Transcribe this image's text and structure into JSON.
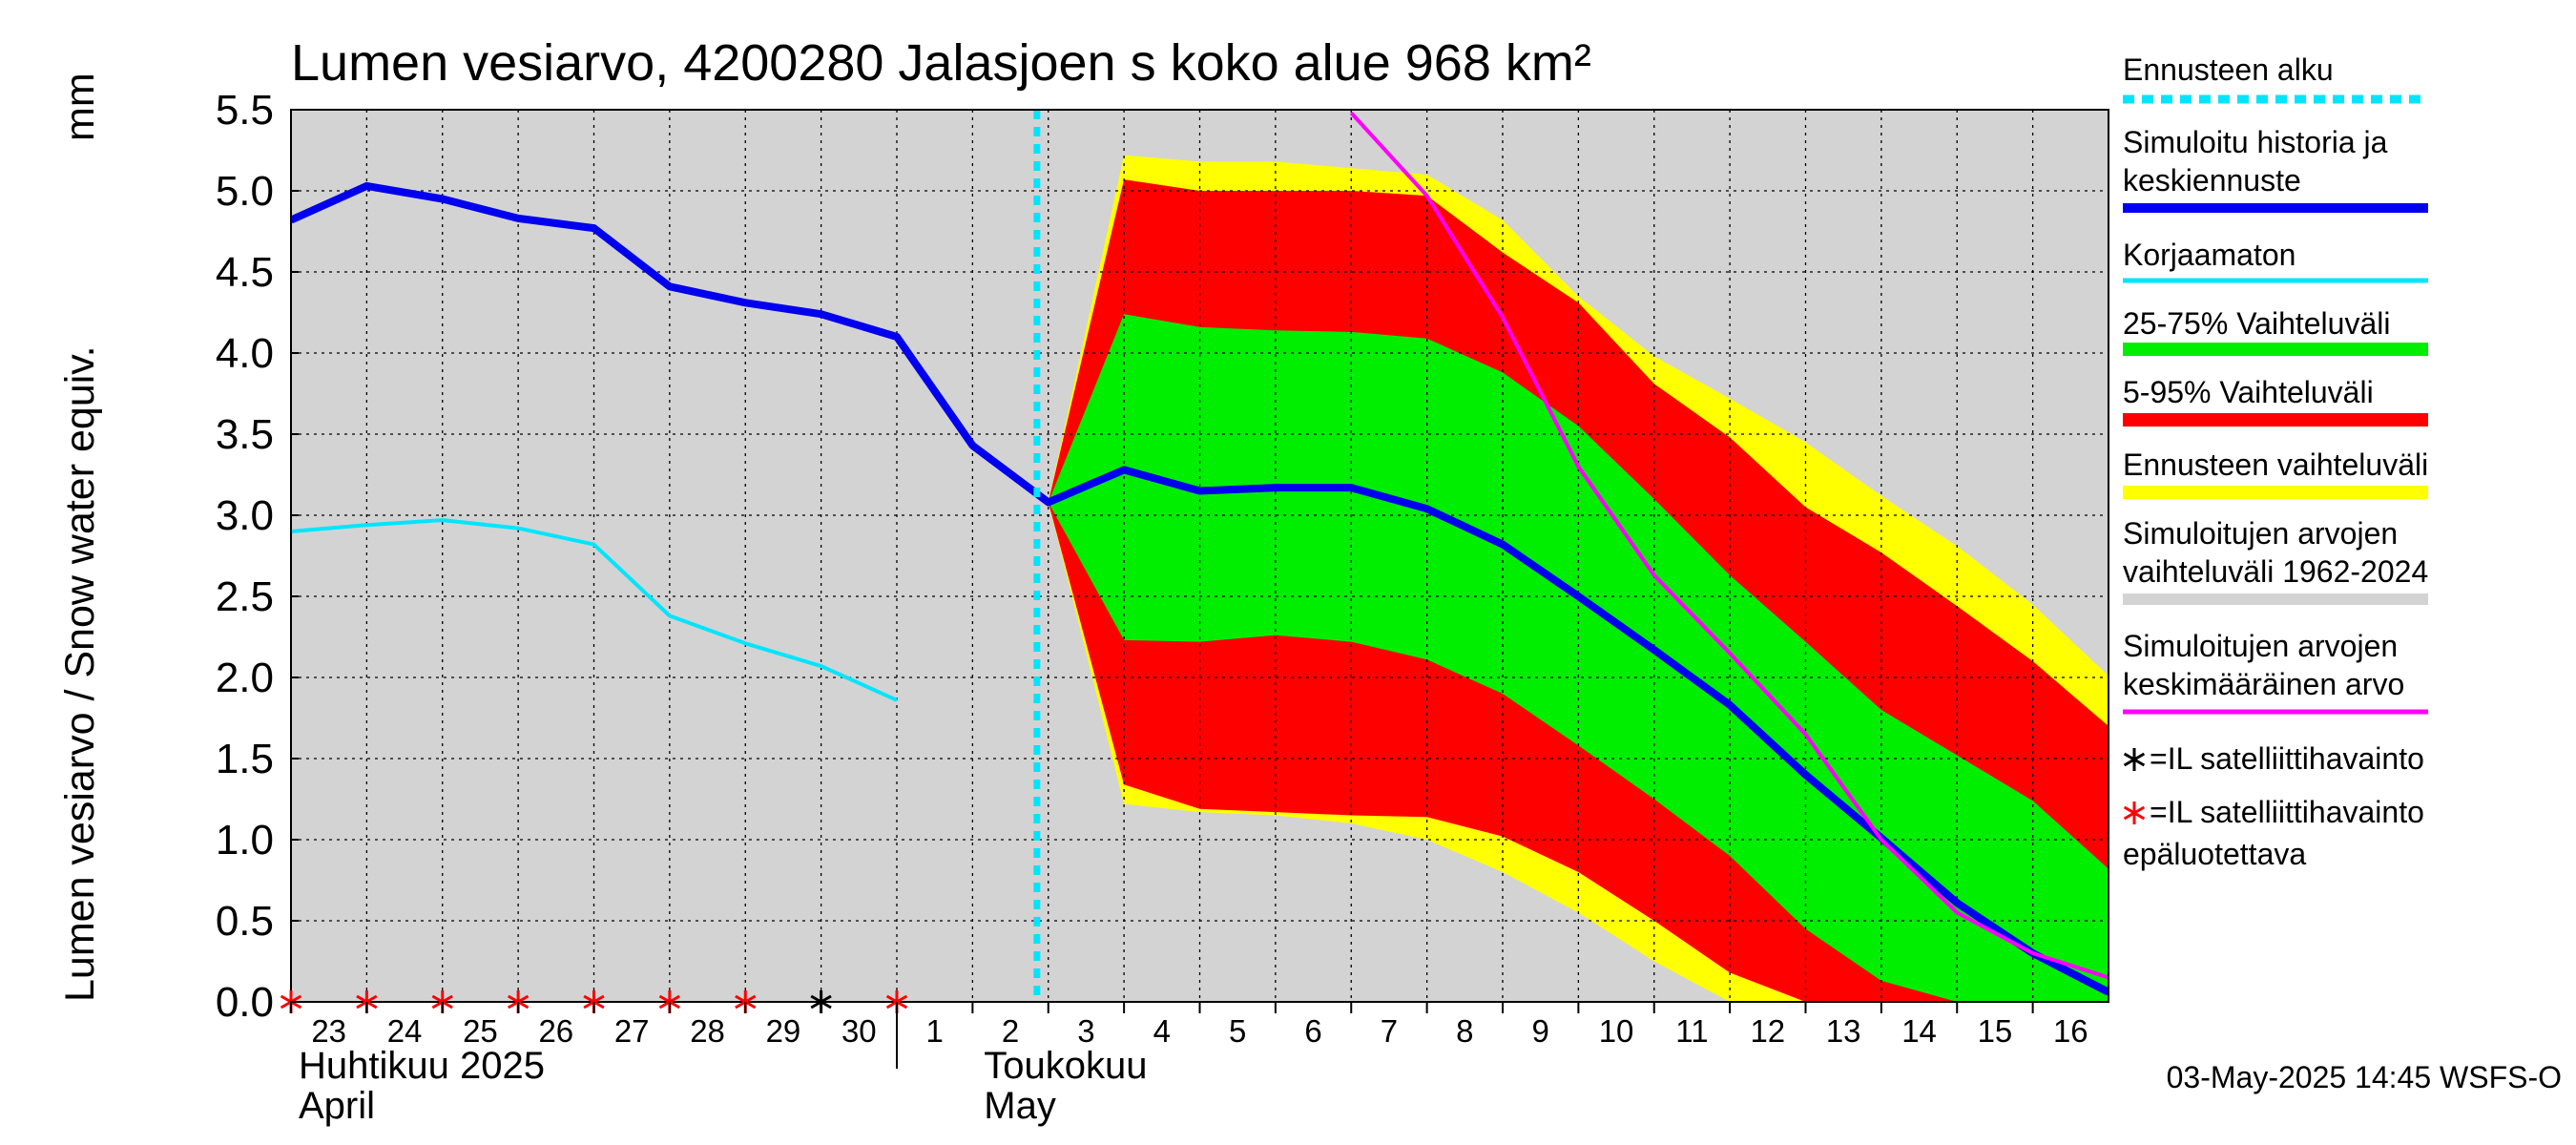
{
  "chart_data": {
    "type": "area",
    "title": "Lumen vesiarvo, 4200280 Jalasjoen s koko alue 968 km²",
    "ylabel": "Lumen vesiarvo / Snow water equiv.",
    "yunit": "mm",
    "ylim": [
      0,
      5.5
    ],
    "yticks": [
      "0.0",
      "0.5",
      "1.0",
      "1.5",
      "2.0",
      "2.5",
      "3.0",
      "3.5",
      "4.0",
      "4.5",
      "5.0",
      "5.5"
    ],
    "grid": true,
    "legend_placement": "right",
    "x_day_labels": [
      "23",
      "24",
      "25",
      "26",
      "27",
      "28",
      "29",
      "30",
      "1",
      "2",
      "3",
      "4",
      "5",
      "6",
      "7",
      "8",
      "9",
      "10",
      "11",
      "12",
      "13",
      "14",
      "15",
      "16"
    ],
    "x_dates": [
      "2025-04-23",
      "2025-04-24",
      "2025-04-25",
      "2025-04-26",
      "2025-04-27",
      "2025-04-28",
      "2025-04-29",
      "2025-04-30",
      "2025-05-01",
      "2025-05-02",
      "2025-05-03",
      "2025-05-04",
      "2025-05-05",
      "2025-05-06",
      "2025-05-07",
      "2025-05-08",
      "2025-05-09",
      "2025-05-10",
      "2025-05-11",
      "2025-05-12",
      "2025-05-13",
      "2025-05-14",
      "2025-05-15",
      "2025-05-16"
    ],
    "month_labels": [
      {
        "line1": "Huhtikuu  2025",
        "line2": "April"
      },
      {
        "line1": "Toukokuu",
        "line2": "May"
      }
    ],
    "forecast_start": "2025-05-03",
    "series": [
      {
        "name": "Simuloitu historia ja keskiennuste",
        "color": "#0000ee",
        "points": [
          [
            "2025-04-23",
            4.82
          ],
          [
            "2025-04-24",
            5.03
          ],
          [
            "2025-04-25",
            4.95
          ],
          [
            "2025-04-26",
            4.83
          ],
          [
            "2025-04-27",
            4.77
          ],
          [
            "2025-04-28",
            4.41
          ],
          [
            "2025-04-29",
            4.31
          ],
          [
            "2025-04-30",
            4.24
          ],
          [
            "2025-05-01",
            4.1
          ],
          [
            "2025-05-02",
            3.43
          ],
          [
            "2025-05-03",
            3.08
          ],
          [
            "2025-05-04",
            3.28
          ],
          [
            "2025-05-05",
            3.15
          ],
          [
            "2025-05-06",
            3.17
          ],
          [
            "2025-05-07",
            3.17
          ],
          [
            "2025-05-08",
            3.04
          ],
          [
            "2025-05-09",
            2.82
          ],
          [
            "2025-05-10",
            2.5
          ],
          [
            "2025-05-11",
            2.17
          ],
          [
            "2025-05-12",
            1.83
          ],
          [
            "2025-05-13",
            1.4
          ],
          [
            "2025-05-14",
            1.01
          ],
          [
            "2025-05-15",
            0.61
          ],
          [
            "2025-05-16",
            0.3
          ],
          [
            "2025-05-17",
            0.06
          ]
        ]
      },
      {
        "name": "Korjaamaton",
        "color": "#00e5ff",
        "points": [
          [
            "2025-04-23",
            2.9
          ],
          [
            "2025-04-24",
            2.94
          ],
          [
            "2025-04-25",
            2.97
          ],
          [
            "2025-04-26",
            2.92
          ],
          [
            "2025-04-27",
            2.82
          ],
          [
            "2025-04-28",
            2.38
          ],
          [
            "2025-04-29",
            2.21
          ],
          [
            "2025-04-30",
            2.07
          ],
          [
            "2025-05-01",
            1.86
          ]
        ]
      },
      {
        "name": "Simuloitujen arvojen keskimääräinen arvo",
        "color": "#ff00ff",
        "points": [
          [
            "2025-05-07",
            5.48
          ],
          [
            "2025-05-08",
            4.97
          ],
          [
            "2025-05-09",
            4.22
          ],
          [
            "2025-05-10",
            3.3
          ],
          [
            "2025-05-11",
            2.63
          ],
          [
            "2025-05-12",
            2.15
          ],
          [
            "2025-05-13",
            1.65
          ],
          [
            "2025-05-14",
            1.0
          ],
          [
            "2025-05-15",
            0.55
          ],
          [
            "2025-05-16",
            0.3
          ],
          [
            "2025-05-17",
            0.15
          ]
        ]
      }
    ],
    "bands": {
      "x": [
        "2025-05-03",
        "2025-05-04",
        "2025-05-05",
        "2025-05-06",
        "2025-05-07",
        "2025-05-08",
        "2025-05-09",
        "2025-05-10",
        "2025-05-11",
        "2025-05-12",
        "2025-05-13",
        "2025-05-14",
        "2025-05-15",
        "2025-05-16",
        "2025-05-17"
      ],
      "ennusteen_vaihteluvali": {
        "name": "Ennusteen vaihteluväli",
        "color": "#ffff00",
        "upper": [
          3.08,
          5.22,
          5.18,
          5.18,
          5.14,
          5.1,
          4.82,
          4.35,
          3.98,
          3.72,
          3.45,
          3.12,
          2.81,
          2.45,
          2.01
        ],
        "lower": [
          3.08,
          1.22,
          1.17,
          1.15,
          1.1,
          1.0,
          0.8,
          0.55,
          0.25,
          0.0,
          0.0,
          0.0,
          0.0,
          0.0,
          0.0
        ]
      },
      "vaihteluvali_5_95": {
        "name": "5-95% Vaihteluväli",
        "color": "#ff0000",
        "upper": [
          3.08,
          5.07,
          5.0,
          5.0,
          5.0,
          4.97,
          4.62,
          4.31,
          3.81,
          3.48,
          3.05,
          2.77,
          2.44,
          2.1,
          1.7
        ],
        "lower": [
          3.08,
          1.34,
          1.19,
          1.17,
          1.15,
          1.14,
          1.02,
          0.8,
          0.5,
          0.18,
          0.0,
          0.0,
          0.0,
          0.0,
          0.0
        ]
      },
      "vaihteluvali_25_75": {
        "name": "25-75% Vaihteluväli",
        "color": "#00ee00",
        "upper": [
          3.08,
          4.24,
          4.16,
          4.14,
          4.13,
          4.09,
          3.88,
          3.55,
          3.1,
          2.63,
          2.22,
          1.8,
          1.52,
          1.24,
          0.82
        ],
        "lower": [
          3.08,
          2.23,
          2.22,
          2.26,
          2.22,
          2.11,
          1.9,
          1.58,
          1.25,
          0.9,
          0.45,
          0.13,
          0.0,
          0.0,
          0.0
        ]
      }
    },
    "observations": {
      "reliable": {
        "marker": "black-star",
        "x": [
          "2025-04-30"
        ],
        "y": [
          0.0
        ]
      },
      "unreliable": {
        "marker": "red-star",
        "x": [
          "2025-04-23",
          "2025-04-24",
          "2025-04-25",
          "2025-04-26",
          "2025-04-27",
          "2025-04-28",
          "2025-04-29",
          "2025-05-01"
        ],
        "y": [
          0.0,
          0.0,
          0.0,
          0.0,
          0.0,
          0.0,
          0.0,
          0.0
        ]
      }
    },
    "legend": [
      {
        "label": "Ennusteen alku",
        "color": "#00e5ff",
        "style": "dotted"
      },
      {
        "label": "Simuloitu historia ja keskiennuste",
        "color": "#0000ee",
        "style": "thick"
      },
      {
        "label": "Korjaamaton",
        "color": "#00e5ff",
        "style": "line"
      },
      {
        "label": "25-75% Vaihteluväli",
        "color": "#00ee00",
        "style": "thick"
      },
      {
        "label": "5-95% Vaihteluväli",
        "color": "#ff0000",
        "style": "thick"
      },
      {
        "label": "Ennusteen vaihteluväli",
        "color": "#ffff00",
        "style": "thick"
      },
      {
        "label": "Simuloitujen arvojen vaihteluväli 1962-2024",
        "color": "#d3d3d3",
        "style": "thick"
      },
      {
        "label": "Simuloitujen arvojen keskimääräinen arvo",
        "color": "#ff00ff",
        "style": "line"
      },
      {
        "label": "=IL satelliittihavainto",
        "color": "#000000",
        "style": "star"
      },
      {
        "label": "=IL satelliittihavainto epäluotettava",
        "color": "#ff0000",
        "style": "star"
      }
    ],
    "timestamp": "03-May-2025 14:45 WSFS-O"
  }
}
